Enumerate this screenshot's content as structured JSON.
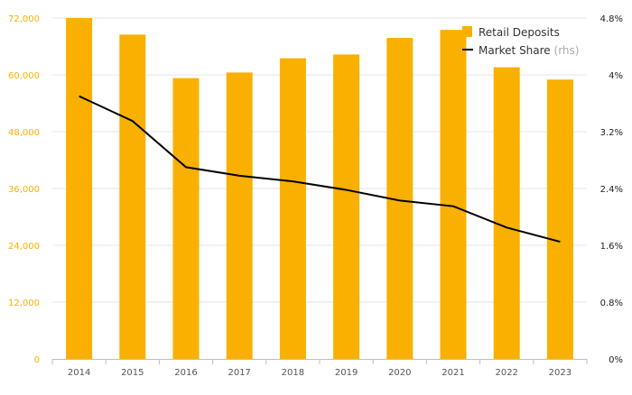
{
  "colors": {
    "bar": "#F9B000",
    "line": "#000000",
    "grid": "#E6E6E6",
    "left_axis_text": "#F9B000",
    "right_axis_text": "#222222",
    "x_axis_text": "#555555",
    "legend_text": "#333333",
    "legend_rhs_note": "#AAAAAA"
  },
  "chart_data": {
    "type": "bar",
    "categories": [
      "2014",
      "2015",
      "2016",
      "2017",
      "2018",
      "2019",
      "2020",
      "2021",
      "2022",
      "2023"
    ],
    "series": [
      {
        "name": "Retail Deposits",
        "type": "bar",
        "axis": "left",
        "values": [
          72000,
          68500,
          59300,
          60500,
          63500,
          64300,
          67800,
          69500,
          61600,
          59000
        ]
      },
      {
        "name": "Market Share",
        "name_note": "(rhs)",
        "type": "line",
        "axis": "right",
        "values": [
          3.7,
          3.35,
          2.7,
          2.58,
          2.5,
          2.38,
          2.23,
          2.15,
          1.85,
          1.65
        ]
      }
    ],
    "y_left": {
      "ylim": [
        0,
        72000
      ],
      "ticks": [
        0,
        12000,
        24000,
        36000,
        48000,
        60000,
        72000
      ],
      "tick_labels": [
        "0",
        "12,000",
        "24,000",
        "36,000",
        "48,000",
        "60,000",
        "72,000"
      ]
    },
    "y_right": {
      "ylim": [
        0,
        4.8
      ],
      "ticks": [
        0,
        0.8,
        1.6,
        2.4,
        3.2,
        4.0,
        4.8
      ],
      "tick_labels": [
        "0%",
        "0.8%",
        "1.6%",
        "2.4%",
        "3.2%",
        "4%",
        "4.8%"
      ]
    },
    "grid": true,
    "legend_position": "top-right"
  }
}
